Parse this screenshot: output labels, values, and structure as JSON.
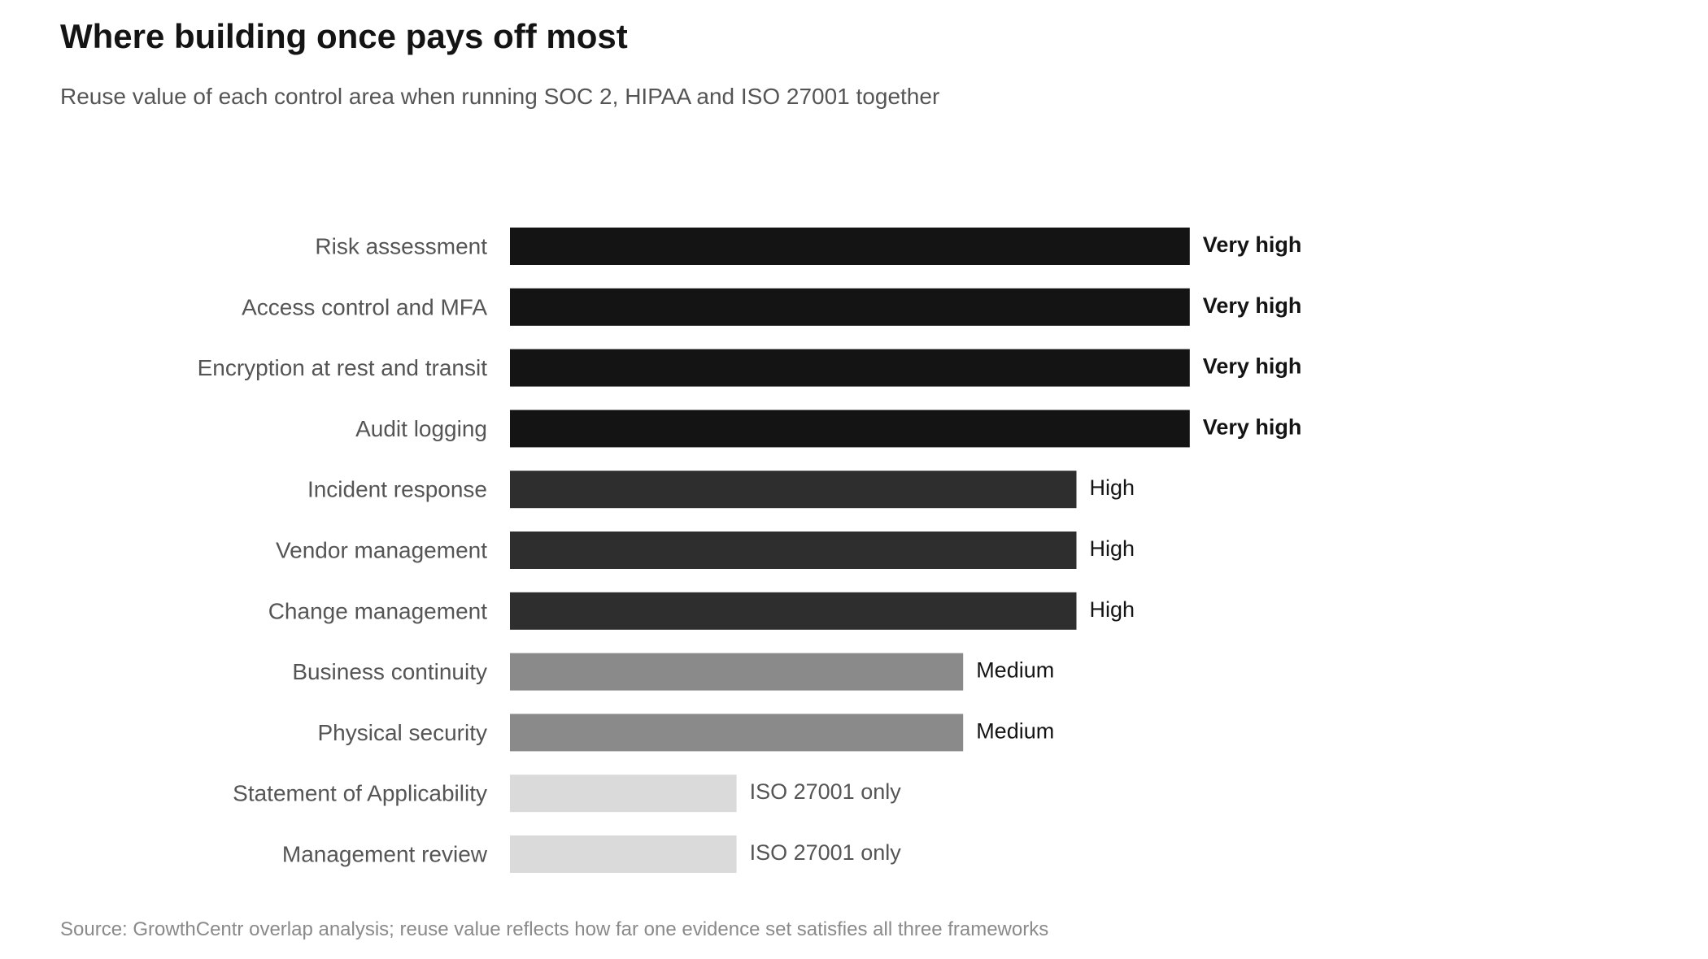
{
  "title": "Where building once pays off most",
  "subtitle": "Reuse value of each control area when running SOC 2, HIPAA and ISO 27001 together",
  "source": "Source: GrowthCentr overlap analysis; reuse value reflects how far one evidence set satisfies all three frameworks",
  "chart_data": {
    "type": "bar",
    "orientation": "horizontal",
    "title": "Where building once pays off most",
    "subtitle": "Reuse value of each control area when running SOC 2, HIPAA and ISO 27001 together",
    "xlabel": "",
    "ylabel": "",
    "grid": false,
    "legend": "none",
    "xlim": [
      0,
      4
    ],
    "categories": [
      "Risk assessment",
      "Access control and MFA",
      "Encryption at rest and transit",
      "Audit logging",
      "Incident response",
      "Vendor management",
      "Change management",
      "Business continuity",
      "Physical security",
      "Statement of Applicability",
      "Management review"
    ],
    "values": [
      3,
      3,
      3,
      3,
      2.5,
      2.5,
      2.5,
      2,
      2,
      1,
      1
    ],
    "value_labels": [
      "Very high",
      "Very high",
      "Very high",
      "Very high",
      "High",
      "High",
      "High",
      "Medium",
      "Medium",
      "ISO 27001 only",
      "ISO 27001 only"
    ],
    "levels": {
      "Very high": {
        "bar_color": "#141414",
        "label_color": "#141414",
        "label_bold": true
      },
      "High": {
        "bar_color": "#2e2e2e",
        "label_color": "#141414",
        "label_bold": false
      },
      "Medium": {
        "bar_color": "#8a8a8a",
        "label_color": "#141414",
        "label_bold": false
      },
      "ISO 27001 only": {
        "bar_color": "#dadada",
        "label_color": "#555555",
        "label_bold": false
      }
    }
  }
}
